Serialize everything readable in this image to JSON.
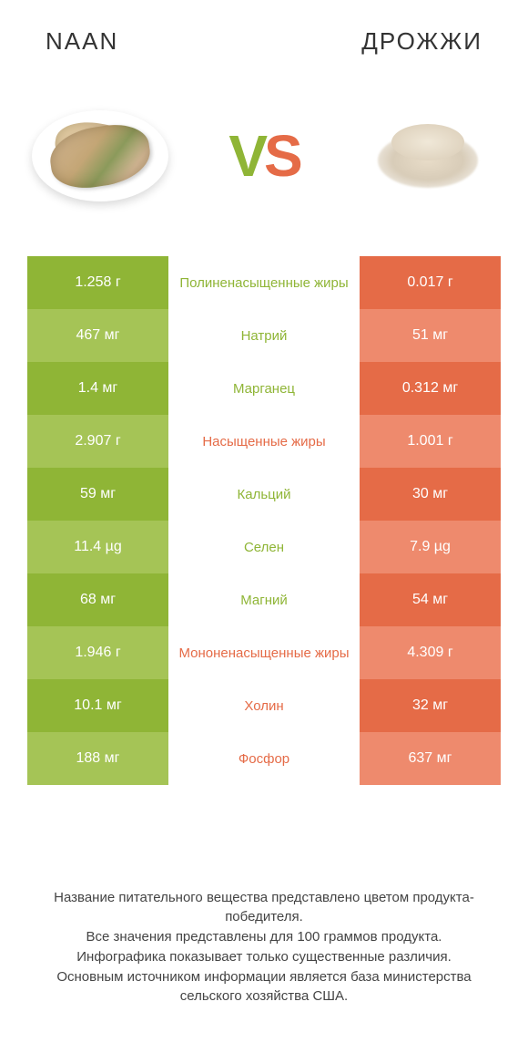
{
  "header": {
    "left_title": "NAAN",
    "right_title": "ДРОЖЖИ"
  },
  "vs": {
    "v": "V",
    "s": "S"
  },
  "colors": {
    "green_dark": "#8fb536",
    "green_light": "#a5c456",
    "orange_dark": "#e56b47",
    "orange_light": "#ee8a6d",
    "mid_green": "#8fb536",
    "mid_orange": "#e56b47"
  },
  "rows": [
    {
      "left": "1.258 г",
      "mid": "Полиненасыщенные жиры",
      "right": "0.017 г",
      "winner": "left"
    },
    {
      "left": "467 мг",
      "mid": "Натрий",
      "right": "51 мг",
      "winner": "left"
    },
    {
      "left": "1.4 мг",
      "mid": "Марганец",
      "right": "0.312 мг",
      "winner": "left"
    },
    {
      "left": "2.907 г",
      "mid": "Насыщенные жиры",
      "right": "1.001 г",
      "winner": "right"
    },
    {
      "left": "59 мг",
      "mid": "Кальций",
      "right": "30 мг",
      "winner": "left"
    },
    {
      "left": "11.4 µg",
      "mid": "Селен",
      "right": "7.9 µg",
      "winner": "left"
    },
    {
      "left": "68 мг",
      "mid": "Магний",
      "right": "54 мг",
      "winner": "left"
    },
    {
      "left": "1.946 г",
      "mid": "Мононенасыщенные жиры",
      "right": "4.309 г",
      "winner": "right"
    },
    {
      "left": "10.1 мг",
      "mid": "Холин",
      "right": "32 мг",
      "winner": "right"
    },
    {
      "left": "188 мг",
      "mid": "Фосфор",
      "right": "637 мг",
      "winner": "right"
    }
  ],
  "footer": {
    "line1": "Название питательного вещества представлено цветом продукта-победителя.",
    "line2": "Все значения представлены для 100 граммов продукта.",
    "line3": "Инфографика показывает только существенные различия.",
    "line4": "Основным источником информации является база министерства сельского хозяйства США."
  }
}
